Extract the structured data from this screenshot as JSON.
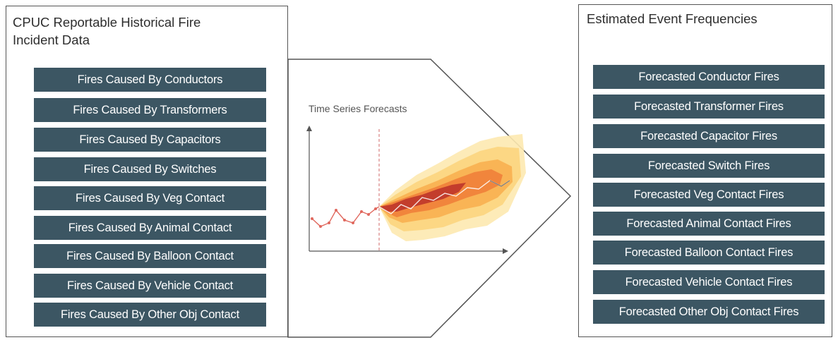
{
  "left_panel": {
    "title": "CPUC Reportable Historical Fire\nIncident Data",
    "items": [
      "Fires Caused By Conductors",
      "Fires Caused By Transformers",
      "Fires Caused By Capacitors",
      "Fires Caused By Switches",
      "Fires Caused By Veg Contact",
      "Fires Caused By Animal Contact",
      "Fires Caused By Balloon Contact",
      "Fires Caused By Vehicle Contact",
      "Fires Caused By Other Obj Contact"
    ]
  },
  "middle": {
    "chart_title": "Time Series Forecasts"
  },
  "right_panel": {
    "title": "Estimated Event Frequencies",
    "items": [
      "Forecasted Conductor Fires",
      "Forecasted Transformer Fires",
      "Forecasted Capacitor Fires",
      "Forecasted Switch Fires",
      "Forecasted Veg Contact Fires",
      "Forecasted Animal Contact Fires",
      "Forecasted Balloon Contact Fires",
      "Forecasted Vehicle Contact Fires",
      "Forecasted Other Obj Contact Fires"
    ]
  },
  "colors": {
    "box_fill": "#3c5663",
    "history_line": "#e0685e",
    "forecast_line": "#7a7a7a",
    "fan_inner": "#c0392b",
    "fan_outer": "#fde8a8"
  }
}
